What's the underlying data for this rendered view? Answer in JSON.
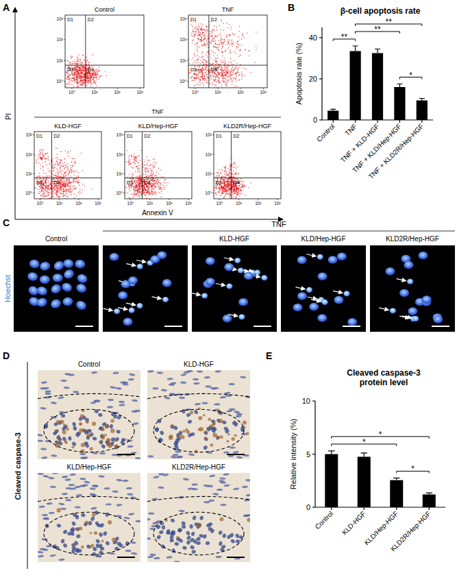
{
  "panel_labels": [
    "A",
    "B",
    "C",
    "D",
    "E"
  ],
  "flow": {
    "x_label": "Annexin V",
    "y_label": "PI",
    "group_label": "TNF",
    "log": true,
    "xlim": [
      0.5,
      1500
    ],
    "ylim": [
      0.5,
      1500
    ],
    "xticks": [
      {
        "value": 1,
        "label": "10⁰"
      },
      {
        "value": 10,
        "label": "10¹"
      },
      {
        "value": 100,
        "label": "10²"
      },
      {
        "value": 1000,
        "label": "10³"
      }
    ],
    "yticks": [
      {
        "value": 1,
        "label": "10⁰"
      },
      {
        "value": 10,
        "label": "10¹"
      },
      {
        "value": 100,
        "label": "10²"
      },
      {
        "value": 1000,
        "label": "10³"
      }
    ],
    "gate": {
      "x": 4,
      "y": 6
    },
    "quadrants": [
      "D1",
      "D2",
      "D3",
      "D4"
    ],
    "plots": [
      {
        "title": "Control"
      },
      {
        "title": "TNF"
      },
      {
        "title": "KLD-HGF"
      },
      {
        "title": "KLD/Hep-HGF"
      },
      {
        "title": "KLD2R/Hep-HGF"
      }
    ]
  },
  "hoechst": {
    "stain": "Hoechst",
    "group_label": "TNF",
    "images": [
      "Control",
      null,
      "KLD-HGF",
      "KLD/Hep-HGF",
      "KLD2R/Hep-HGF"
    ]
  },
  "ihc": {
    "stain": "Cleaved caspase-3",
    "images": [
      "Control",
      "KLD-HGF",
      "KLD/Hep-HGF",
      "KLD2R/Hep-HGF"
    ]
  },
  "chart_data": [
    {
      "type": "bar",
      "title": "β-cell apoptosis rate",
      "y_label": "Apoptosis rate (%)",
      "categories": [
        "Control",
        "TNF",
        "TNF + KLD-HGF",
        "TNF + KLD/Hep-HGF",
        "TNF + KLD2R/Hep-HGF"
      ],
      "values": [
        4.5,
        33.5,
        32.5,
        16,
        9.5
      ],
      "errors": [
        0.7,
        2.5,
        2,
        1.5,
        1
      ],
      "color": "#000000",
      "ylim": [
        0,
        45
      ],
      "yticks": [
        0,
        20,
        40
      ],
      "annotations": [
        {
          "pair": [
            0,
            1
          ],
          "label": "**"
        },
        {
          "pair": [
            1,
            3
          ],
          "label": "**"
        },
        {
          "pair": [
            1,
            4
          ],
          "label": "**"
        },
        {
          "pair": [
            3,
            4
          ],
          "label": "*"
        }
      ]
    },
    {
      "type": "bar",
      "title": "Cleaved caspase-3 protein level",
      "y_label": "Relative intensity (%)",
      "categories": [
        "Control",
        "KLD-HGF",
        "KLD/Hep-HGF",
        "KLD2R/Hep-HGF"
      ],
      "values": [
        5.0,
        4.75,
        2.55,
        1.2
      ],
      "errors": [
        0.3,
        0.35,
        0.2,
        0.15
      ],
      "color": "#000000",
      "ylim": [
        0,
        10
      ],
      "yticks": [
        0,
        5,
        10
      ],
      "annotations": [
        {
          "pair": [
            0,
            2
          ],
          "label": "*"
        },
        {
          "pair": [
            0,
            3
          ],
          "label": "*"
        },
        {
          "pair": [
            2,
            3
          ],
          "label": "*"
        }
      ]
    }
  ]
}
